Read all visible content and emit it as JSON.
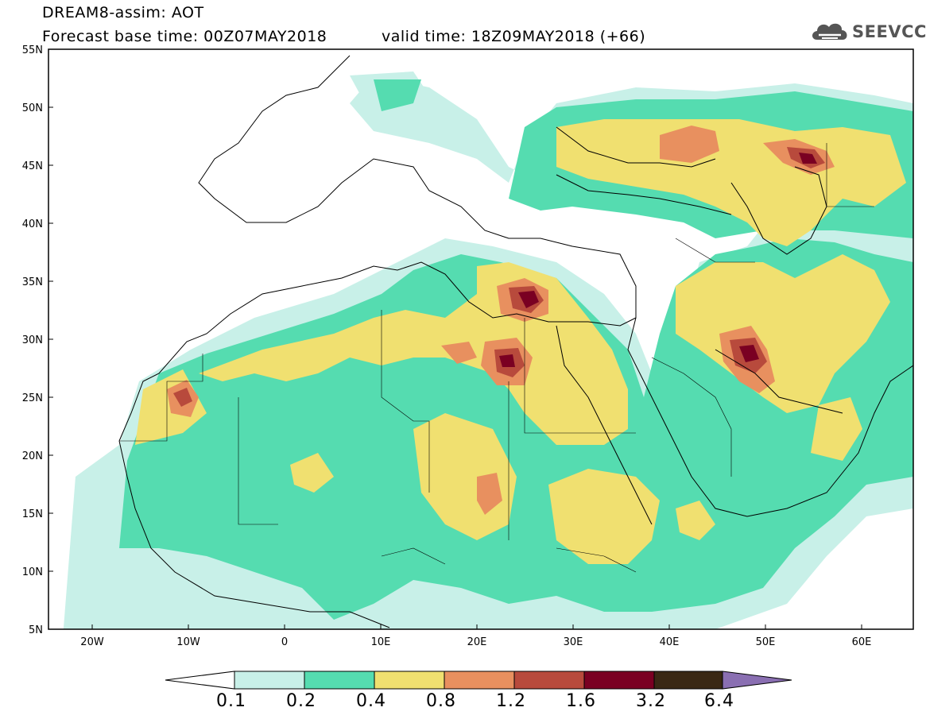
{
  "header": {
    "title_line1": "DREAM8-assim: AOT",
    "title_line2": "Forecast base time: 00Z07MAY2018",
    "valid_time": "valid time: 18Z09MAY2018 (+66)",
    "logo_text": "SEEVCCC",
    "logo_icon": "cloud-icon"
  },
  "map": {
    "lat_labels": [
      "55N",
      "50N",
      "45N",
      "40N",
      "35N",
      "30N",
      "25N",
      "20N",
      "15N",
      "10N",
      "5N"
    ],
    "lon_labels": [
      "20W",
      "10W",
      "0",
      "10E",
      "20E",
      "30E",
      "40E",
      "50E",
      "60E"
    ]
  },
  "colorbar": {
    "labels": [
      "0.1",
      "0.2",
      "0.4",
      "0.8",
      "1.2",
      "1.6",
      "3.2",
      "6.4"
    ],
    "colors": [
      "#c8f0e8",
      "#55dcb0",
      "#f0e070",
      "#e8905f",
      "#b84a3c",
      "#7a0022",
      "#3a2814",
      "#8a6fb2"
    ]
  }
}
